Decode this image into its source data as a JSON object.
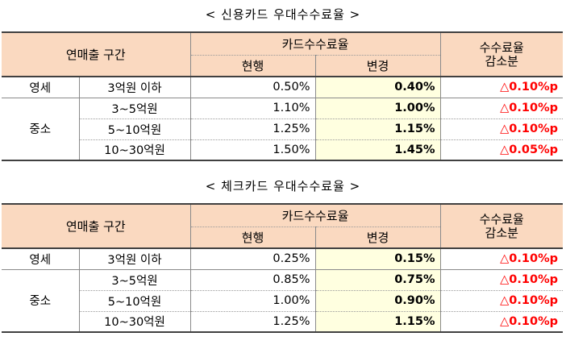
{
  "tables": [
    {
      "caption": "< 신용카드 우대수수료율 >",
      "header": {
        "col_range": "연매출 구간",
        "col_rate_group": "카드수수료율",
        "col_current": "현행",
        "col_changed": "변경",
        "col_reduction": "수수료율\n감소분"
      },
      "rows": [
        {
          "type": "영세",
          "range": "3억원 이하",
          "current": "0.50%",
          "changed": "0.40%",
          "reduction": "△0.10%p"
        },
        {
          "type": "중소",
          "range": "3~5억원",
          "current": "1.10%",
          "changed": "1.00%",
          "reduction": "△0.10%p"
        },
        {
          "type": "",
          "range": "5~10억원",
          "current": "1.25%",
          "changed": "1.15%",
          "reduction": "△0.10%p"
        },
        {
          "type": "",
          "range": "10~30억원",
          "current": "1.50%",
          "changed": "1.45%",
          "reduction": "△0.05%p"
        }
      ]
    },
    {
      "caption": "< 체크카드 우대수수료율 >",
      "header": {
        "col_range": "연매출 구간",
        "col_rate_group": "카드수수료율",
        "col_current": "현행",
        "col_changed": "변경",
        "col_reduction": "수수료율\n감소분"
      },
      "rows": [
        {
          "type": "영세",
          "range": "3억원 이하",
          "current": "0.25%",
          "changed": "0.15%",
          "reduction": "△0.10%p"
        },
        {
          "type": "중소",
          "range": "3~5억원",
          "current": "0.85%",
          "changed": "0.75%",
          "reduction": "△0.10%p"
        },
        {
          "type": "",
          "range": "5~10억원",
          "current": "1.00%",
          "changed": "0.90%",
          "reduction": "△0.10%p"
        },
        {
          "type": "",
          "range": "10~30억원",
          "current": "1.25%",
          "changed": "1.15%",
          "reduction": "△0.10%p"
        }
      ]
    }
  ],
  "colors": {
    "header_bg": "#fad9c0",
    "changed_bg": "#ffffe0",
    "reduction_text": "#ff0000"
  }
}
